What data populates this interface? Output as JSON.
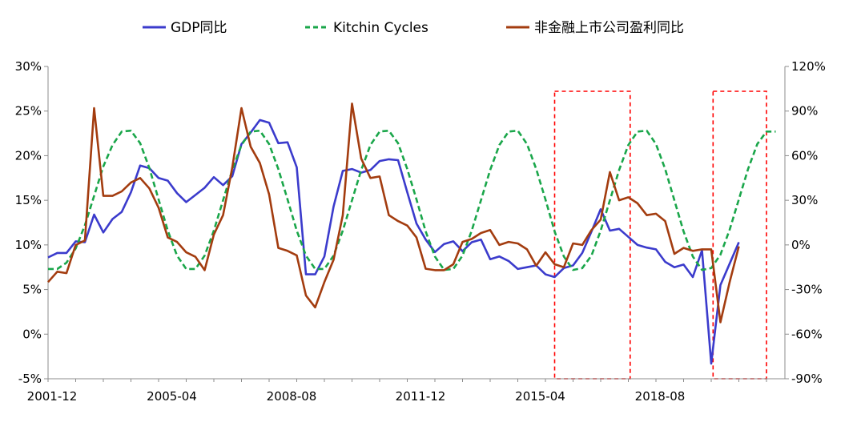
{
  "chart_data": {
    "type": "line",
    "legend": {
      "placement": "top"
    },
    "series": [
      {
        "name": "GDP同比",
        "axis": "left",
        "color": "#3b3bcc",
        "dash": "solid",
        "values": [
          8.6,
          9.1,
          9.1,
          10.4,
          10.3,
          13.4,
          11.4,
          12.9,
          13.7,
          15.9,
          18.9,
          18.6,
          17.5,
          17.2,
          15.8,
          14.8,
          15.6,
          16.4,
          17.6,
          16.7,
          17.7,
          21.3,
          22.6,
          24.0,
          23.7,
          21.4,
          21.5,
          18.7,
          6.7,
          6.7,
          8.7,
          14.3,
          18.3,
          18.5,
          18.1,
          18.4,
          19.4,
          19.6,
          19.5,
          15.9,
          12.4,
          10.6,
          9.2,
          10.1,
          10.4,
          9.3,
          10.3,
          10.6,
          8.4,
          8.7,
          8.2,
          7.3,
          7.5,
          7.7,
          6.7,
          6.4,
          7.4,
          7.7,
          9.1,
          11.5,
          14.0,
          11.6,
          11.8,
          10.9,
          10.0,
          9.7,
          9.5,
          8.1,
          7.5,
          7.8,
          6.4,
          9.4,
          -3.3,
          5.5,
          7.9,
          10.3
        ]
      },
      {
        "name": "Kitchin Cycles",
        "axis": "left",
        "color": "#1aa64a",
        "dash": "dashed",
        "x_offset": 0,
        "values": [
          7.3,
          7.3,
          8.0,
          9.6,
          12.2,
          15.5,
          18.8,
          21.2,
          22.7,
          22.8,
          21.4,
          18.6,
          15.1,
          11.6,
          8.8,
          7.3,
          7.3,
          8.8,
          11.6,
          15.0,
          18.4,
          21.2,
          22.7,
          22.8,
          21.3,
          18.5,
          15.1,
          11.6,
          8.8,
          7.3,
          7.3,
          8.8,
          11.6,
          15.0,
          18.4,
          21.2,
          22.7,
          22.8,
          21.4,
          18.5,
          15.1,
          11.5,
          8.7,
          7.2,
          7.3,
          8.8,
          11.6,
          15.0,
          18.4,
          21.2,
          22.7,
          22.8,
          21.3,
          18.5,
          15.1,
          11.5,
          8.7,
          7.2,
          7.4,
          8.8,
          11.6,
          15.0,
          18.4,
          21.2,
          22.7,
          22.8,
          21.3,
          18.5,
          15.0,
          11.5,
          8.7,
          7.2,
          7.4,
          8.9,
          11.7,
          15.1,
          18.5,
          21.3,
          22.7,
          22.7
        ]
      },
      {
        "name": "非金融上市公司盈利同比",
        "axis": "right",
        "color": "#a33c0f",
        "dash": "solid",
        "values": [
          -25,
          -18,
          -19,
          0,
          3,
          92,
          33,
          33,
          36,
          42,
          45,
          38,
          25,
          5,
          2,
          -5,
          -8,
          -17,
          7,
          20,
          52,
          92,
          66,
          55,
          34,
          -2,
          -4,
          -7,
          -34,
          -42,
          -25,
          -10,
          20,
          95,
          58,
          45,
          46,
          20,
          16,
          13,
          5,
          -16,
          -17,
          -17,
          -13,
          2,
          4,
          8,
          10,
          0,
          2,
          1,
          -3,
          -14,
          -5,
          -13,
          -15,
          1,
          0,
          10,
          17,
          49,
          30,
          32,
          28,
          20,
          21,
          16,
          -6,
          -2,
          -4,
          -3,
          -3,
          -52,
          -25,
          -1
        ]
      }
    ],
    "y_left": {
      "min": -5,
      "max": 30,
      "step": 5,
      "tick_labels": [
        "-5%",
        "0%",
        "5%",
        "10%",
        "15%",
        "20%",
        "25%",
        "30%"
      ]
    },
    "y_right": {
      "min": -90,
      "max": 120,
      "step": 30,
      "tick_labels": [
        "-90%",
        "-60%",
        "-30%",
        "0%",
        "30%",
        "60%",
        "90%",
        "120%"
      ]
    },
    "x_ticks": [
      {
        "index": 0,
        "label": "2001-12"
      },
      {
        "index": 13,
        "label": "2005-04"
      },
      {
        "index": 26,
        "label": "2008-08"
      },
      {
        "index": 40,
        "label": "2011-12"
      },
      {
        "index": 53,
        "label": "2015-04"
      },
      {
        "index": 66,
        "label": "2018-08"
      }
    ],
    "x_count": 80,
    "highlight_regions": [
      {
        "start_index": 55.0,
        "end_index": 63.2,
        "color": "#ff0000"
      },
      {
        "start_index": 72.2,
        "end_index": 78.0,
        "color": "#ff0000"
      }
    ],
    "grid": false
  }
}
